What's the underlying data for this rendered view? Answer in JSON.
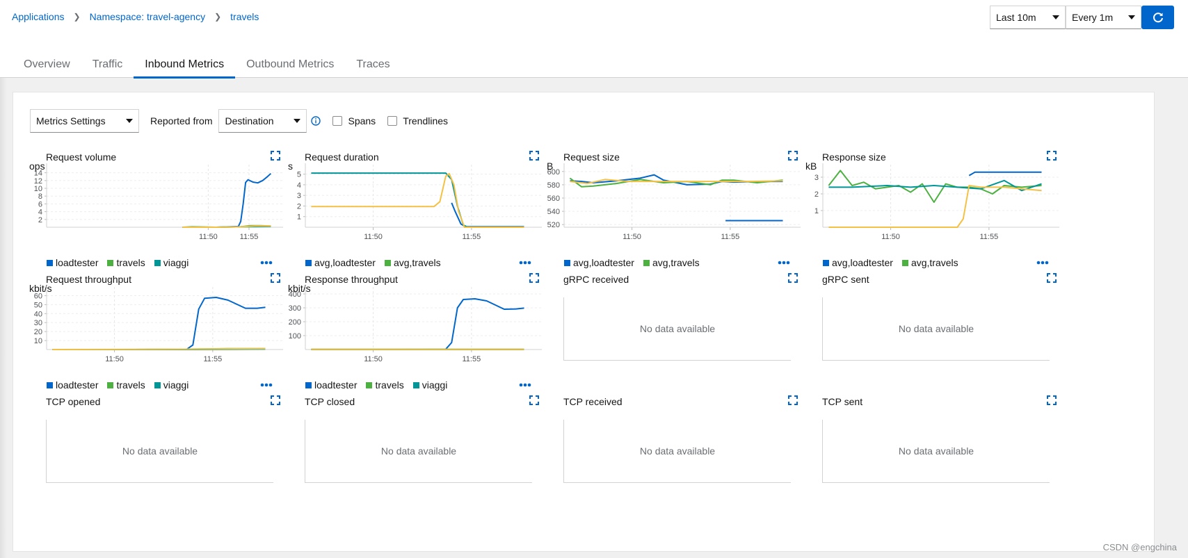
{
  "breadcrumb": [
    {
      "label": "Applications"
    },
    {
      "label": "Namespace: travel-agency"
    },
    {
      "label": "travels"
    }
  ],
  "controls": {
    "time_range": "Last 10m",
    "refresh_interval": "Every 1m"
  },
  "tabs": [
    {
      "label": "Overview"
    },
    {
      "label": "Traffic"
    },
    {
      "label": "Inbound Metrics",
      "active": true
    },
    {
      "label": "Outbound Metrics"
    },
    {
      "label": "Traces"
    }
  ],
  "toolbar": {
    "metrics_settings": "Metrics Settings",
    "reported_from_label": "Reported from",
    "reported_from_value": "Destination",
    "spans_label": "Spans",
    "trendlines_label": "Trendlines"
  },
  "colors": {
    "accent": "#0066cc",
    "loadtester": "#0066cc",
    "travels": "#4cb140",
    "viaggi": "#009596",
    "yellow": "#f4c145"
  },
  "no_data_text": "No data available",
  "watermark": "CSDN @engchina",
  "panels": [
    {
      "title": "Request volume",
      "unit": "ops",
      "legend": [
        "loadtester",
        "travels",
        "viaggi"
      ]
    },
    {
      "title": "Request duration",
      "unit": "s",
      "legend": [
        "avg,loadtester",
        "avg,travels"
      ]
    },
    {
      "title": "Request size",
      "unit": "B",
      "legend": [
        "avg,loadtester",
        "avg,travels"
      ]
    },
    {
      "title": "Response size",
      "unit": "kB",
      "legend": [
        "avg,loadtester",
        "avg,travels"
      ]
    },
    {
      "title": "Request throughput",
      "unit": "kbit/s",
      "legend": [
        "loadtester",
        "travels",
        "viaggi"
      ]
    },
    {
      "title": "Response throughput",
      "unit": "kbit/s",
      "legend": [
        "loadtester",
        "travels",
        "viaggi"
      ]
    },
    {
      "title": "gRPC received",
      "nodata": true
    },
    {
      "title": "gRPC sent",
      "nodata": true
    },
    {
      "title": "TCP opened",
      "nodata": true
    },
    {
      "title": "TCP closed",
      "nodata": true
    },
    {
      "title": "TCP received",
      "nodata": true
    },
    {
      "title": "TCP sent",
      "nodata": true
    }
  ],
  "chart_data": [
    {
      "type": "line",
      "title": "Request volume",
      "ylabel": "ops",
      "xlim": [
        11.5,
        11.97
      ],
      "ylim": [
        0,
        15
      ],
      "yticks": [
        2,
        4,
        6,
        8,
        10,
        12,
        14
      ],
      "xticks": [
        {
          "t": 11.833,
          "label": "11:50"
        },
        {
          "t": 11.917,
          "label": "11:55"
        }
      ],
      "series": [
        {
          "name": "loadtester",
          "color": "#0066cc",
          "points": [
            [
              11.78,
              0
            ],
            [
              11.85,
              0
            ],
            [
              11.895,
              0.2
            ],
            [
              11.9,
              1.5
            ],
            [
              11.905,
              6
            ],
            [
              11.91,
              11.5
            ],
            [
              11.915,
              12.2
            ],
            [
              11.925,
              11.6
            ],
            [
              11.935,
              11.4
            ],
            [
              11.945,
              12
            ],
            [
              11.955,
              13
            ],
            [
              11.962,
              13.8
            ]
          ]
        },
        {
          "name": "travels",
          "color": "#4cb140",
          "points": [
            [
              11.78,
              0
            ],
            [
              11.8,
              0.1
            ],
            [
              11.85,
              0
            ],
            [
              11.9,
              0.1
            ],
            [
              11.92,
              0.4
            ],
            [
              11.94,
              0.4
            ],
            [
              11.962,
              0.3
            ]
          ]
        },
        {
          "name": "viaggi",
          "color": "#009596",
          "points": [
            [
              11.78,
              0
            ],
            [
              11.85,
              0
            ],
            [
              11.9,
              0.1
            ],
            [
              11.962,
              0.2
            ]
          ]
        },
        {
          "color": "#f4c145",
          "points": [
            [
              11.78,
              0
            ],
            [
              11.85,
              0
            ],
            [
              11.9,
              0.1
            ],
            [
              11.93,
              0.3
            ],
            [
              11.962,
              0.3
            ]
          ]
        }
      ]
    },
    {
      "type": "line",
      "title": "Request duration",
      "ylabel": "s",
      "xlim": [
        11.775,
        11.97
      ],
      "ylim": [
        0,
        5.5
      ],
      "yticks": [
        1,
        2,
        3,
        4,
        5
      ],
      "xticks": [
        {
          "t": 11.833,
          "label": "11:50"
        },
        {
          "t": 11.917,
          "label": "11:55"
        }
      ],
      "series": [
        {
          "name": "avg,loadtester",
          "color": "#0066cc",
          "points": [
            [
              11.9,
              2.3
            ],
            [
              11.903,
              1.5
            ],
            [
              11.908,
              0.3
            ],
            [
              11.912,
              0.05
            ],
            [
              11.962,
              0.05
            ]
          ]
        },
        {
          "name": "avg,travels",
          "color": "#009596",
          "points": [
            [
              11.78,
              5.1
            ],
            [
              11.895,
              5.1
            ],
            [
              11.9,
              4.5
            ],
            [
              11.905,
              2
            ],
            [
              11.91,
              0.2
            ],
            [
              11.914,
              0
            ],
            [
              11.962,
              0
            ]
          ]
        },
        {
          "color": "#f4c145",
          "points": [
            [
              11.78,
              1.95
            ],
            [
              11.885,
              1.95
            ],
            [
              11.89,
              2.4
            ],
            [
              11.895,
              4.8
            ],
            [
              11.898,
              5.05
            ],
            [
              11.902,
              4
            ],
            [
              11.906,
              1.5
            ],
            [
              11.911,
              0
            ],
            [
              11.962,
              0
            ]
          ]
        }
      ]
    },
    {
      "type": "line",
      "title": "Request size",
      "ylabel": "B",
      "xlim": [
        11.775,
        11.97
      ],
      "ylim": [
        516,
        604
      ],
      "yticks": [
        520,
        540,
        560,
        580,
        600
      ],
      "xticks": [
        {
          "t": 11.833,
          "label": "11:50"
        },
        {
          "t": 11.917,
          "label": "11:55"
        }
      ],
      "series": [
        {
          "name": "avg,loadtester",
          "color": "#0066cc",
          "points": [
            [
              11.78,
              586
            ],
            [
              11.79,
              585
            ],
            [
              11.8,
              583
            ],
            [
              11.82,
              586
            ],
            [
              11.84,
              590
            ],
            [
              11.852,
              595
            ],
            [
              11.86,
              587
            ],
            [
              11.88,
              580
            ],
            [
              11.9,
              581
            ],
            [
              11.91,
              585
            ],
            [
              11.92,
              584
            ],
            [
              11.94,
              585
            ],
            [
              11.962,
              585
            ]
          ]
        },
        {
          "name": "avg,travels",
          "color": "#4cb140",
          "points": [
            [
              11.78,
              590
            ],
            [
              11.79,
              577
            ],
            [
              11.8,
              578
            ],
            [
              11.82,
              582
            ],
            [
              11.84,
              588
            ],
            [
              11.86,
              583
            ],
            [
              11.88,
              585
            ],
            [
              11.9,
              580
            ],
            [
              11.91,
              587
            ],
            [
              11.92,
              587
            ],
            [
              11.94,
              583
            ],
            [
              11.962,
              587
            ]
          ]
        },
        {
          "color": "#f4c145",
          "points": [
            [
              11.78,
              585
            ],
            [
              11.795,
              582
            ],
            [
              11.81,
              588
            ],
            [
              11.83,
              585
            ],
            [
              11.85,
              585
            ],
            [
              11.87,
              585
            ],
            [
              11.9,
              585
            ],
            [
              11.93,
              585
            ],
            [
              11.962,
              586
            ]
          ]
        },
        {
          "color": "#0066cc",
          "points": [
            [
              11.913,
              526
            ],
            [
              11.962,
              526
            ]
          ]
        }
      ]
    },
    {
      "type": "line",
      "title": "Response size",
      "ylabel": "kB",
      "xlim": [
        11.775,
        11.97
      ],
      "ylim": [
        0,
        3.5
      ],
      "yticks": [
        1,
        2,
        3
      ],
      "xticks": [
        {
          "t": 11.833,
          "label": "11:50"
        },
        {
          "t": 11.917,
          "label": "11:55"
        }
      ],
      "series": [
        {
          "name": "avg,loadtester",
          "color": "#0066cc",
          "points": [
            [
              11.9,
              3.1
            ],
            [
              11.905,
              3.3
            ],
            [
              11.962,
              3.3
            ]
          ]
        },
        {
          "name": "avg,travels",
          "color": "#4cb140",
          "points": [
            [
              11.78,
              2.5
            ],
            [
              11.79,
              3.4
            ],
            [
              11.8,
              2.5
            ],
            [
              11.81,
              2.7
            ],
            [
              11.82,
              2.3
            ],
            [
              11.83,
              2.4
            ],
            [
              11.84,
              2.5
            ],
            [
              11.85,
              2.1
            ],
            [
              11.86,
              2.6
            ],
            [
              11.87,
              1.5
            ],
            [
              11.88,
              2.6
            ],
            [
              11.89,
              2.4
            ],
            [
              11.9,
              2.4
            ],
            [
              11.91,
              2.3
            ],
            [
              11.92,
              2.0
            ],
            [
              11.93,
              2.5
            ],
            [
              11.945,
              2.4
            ],
            [
              11.962,
              2.5
            ]
          ]
        },
        {
          "color": "#009596",
          "points": [
            [
              11.78,
              2.4
            ],
            [
              11.8,
              2.4
            ],
            [
              11.83,
              2.5
            ],
            [
              11.85,
              2.4
            ],
            [
              11.87,
              2.5
            ],
            [
              11.89,
              2.4
            ],
            [
              11.91,
              2.3
            ],
            [
              11.93,
              2.8
            ],
            [
              11.945,
              2.2
            ],
            [
              11.962,
              2.6
            ]
          ]
        },
        {
          "color": "#f4c145",
          "points": [
            [
              11.78,
              0
            ],
            [
              11.89,
              0
            ],
            [
              11.895,
              0.5
            ],
            [
              11.9,
              2.5
            ],
            [
              11.91,
              2.4
            ],
            [
              11.93,
              2.4
            ],
            [
              11.962,
              2.2
            ]
          ]
        }
      ]
    },
    {
      "type": "line",
      "title": "Request throughput",
      "ylabel": "kbit/s",
      "xlim": [
        11.775,
        11.97
      ],
      "ylim": [
        0,
        65
      ],
      "yticks": [
        10,
        20,
        30,
        40,
        50,
        60
      ],
      "xticks": [
        {
          "t": 11.833,
          "label": "11:50"
        },
        {
          "t": 11.917,
          "label": "11:55"
        }
      ],
      "series": [
        {
          "name": "loadtester",
          "color": "#0066cc",
          "points": [
            [
              11.78,
              0
            ],
            [
              11.85,
              0
            ],
            [
              11.895,
              0.5
            ],
            [
              11.9,
              5
            ],
            [
              11.905,
              45
            ],
            [
              11.91,
              57
            ],
            [
              11.92,
              58
            ],
            [
              11.93,
              55
            ],
            [
              11.945,
              46
            ],
            [
              11.955,
              46
            ],
            [
              11.962,
              47
            ]
          ]
        },
        {
          "name": "travels",
          "color": "#4cb140",
          "points": [
            [
              11.78,
              0
            ],
            [
              11.85,
              0
            ],
            [
              11.9,
              0.5
            ],
            [
              11.93,
              1
            ],
            [
              11.962,
              1
            ]
          ]
        },
        {
          "name": "viaggi",
          "color": "#009596",
          "points": [
            [
              11.78,
              0
            ],
            [
              11.9,
              0
            ],
            [
              11.962,
              0.5
            ]
          ]
        },
        {
          "color": "#f4c145",
          "points": [
            [
              11.78,
              0
            ],
            [
              11.9,
              0.5
            ],
            [
              11.962,
              1
            ]
          ]
        }
      ]
    },
    {
      "type": "line",
      "title": "Response throughput",
      "ylabel": "kbit/s",
      "xlim": [
        11.775,
        11.97
      ],
      "ylim": [
        0,
        420
      ],
      "yticks": [
        100,
        200,
        300,
        400
      ],
      "xticks": [
        {
          "t": 11.833,
          "label": "11:50"
        },
        {
          "t": 11.917,
          "label": "11:55"
        }
      ],
      "series": [
        {
          "name": "loadtester",
          "color": "#0066cc",
          "points": [
            [
              11.78,
              0
            ],
            [
              11.85,
              0
            ],
            [
              11.895,
              2
            ],
            [
              11.9,
              50
            ],
            [
              11.905,
              300
            ],
            [
              11.91,
              360
            ],
            [
              11.92,
              365
            ],
            [
              11.93,
              350
            ],
            [
              11.945,
              290
            ],
            [
              11.955,
              292
            ],
            [
              11.962,
              298
            ]
          ]
        },
        {
          "name": "travels",
          "color": "#4cb140",
          "points": [
            [
              11.78,
              2
            ],
            [
              11.85,
              2
            ],
            [
              11.9,
              2
            ],
            [
              11.962,
              2
            ]
          ]
        },
        {
          "name": "viaggi",
          "color": "#009596",
          "points": [
            [
              11.78,
              0
            ],
            [
              11.962,
              0
            ]
          ]
        },
        {
          "color": "#f4c145",
          "points": [
            [
              11.78,
              1
            ],
            [
              11.962,
              1
            ]
          ]
        }
      ]
    }
  ]
}
